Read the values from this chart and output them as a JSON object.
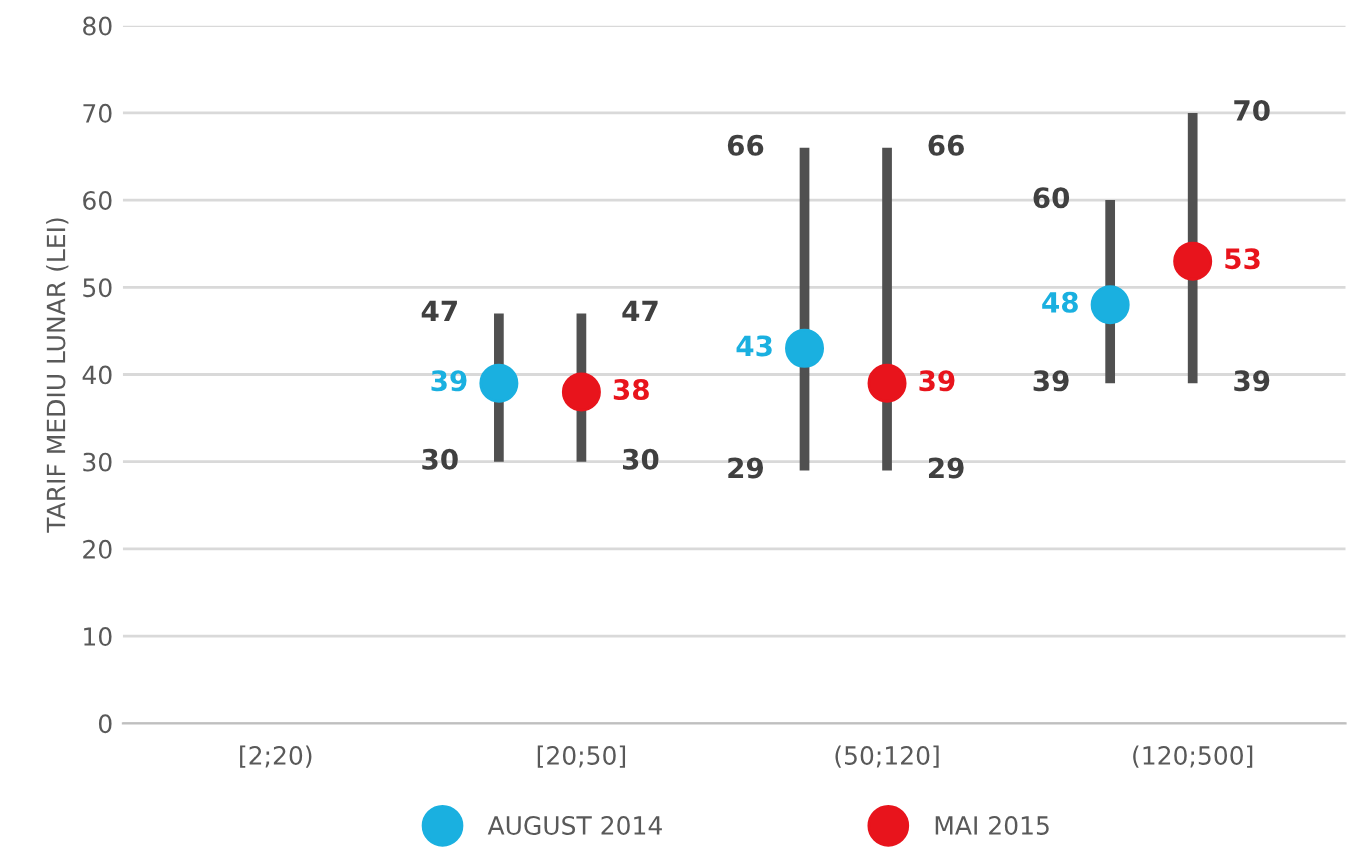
{
  "chart_data": {
    "type": "scatter",
    "ylabel": "TARIF MEDIU LUNAR (LEI)",
    "categories": [
      "[2;20)",
      "[20;50]",
      "(50;120]",
      "(120;500]"
    ],
    "series": [
      {
        "name": "AUGUST 2014",
        "color": "#1ab0e0",
        "values": [
          null,
          39,
          43,
          48
        ],
        "errors": [
          null,
          [
            30,
            47
          ],
          [
            29,
            66
          ],
          [
            39,
            60
          ]
        ]
      },
      {
        "name": "MAI 2015",
        "color": "#e8141c",
        "values": [
          null,
          38,
          39,
          53
        ],
        "errors": [
          null,
          [
            30,
            47
          ],
          [
            29,
            66
          ],
          [
            39,
            70
          ]
        ]
      }
    ],
    "annotations": [
      "30",
      "47",
      "29",
      "66",
      "39",
      "60",
      "30",
      "47",
      "29",
      "66",
      "39",
      "70"
    ],
    "ylim": [
      0,
      80
    ],
    "yticks": [
      0,
      10,
      20,
      30,
      40,
      50,
      60,
      70,
      80
    ],
    "grid": "y",
    "legend": "bottom",
    "marker": "circle",
    "data_labels": true
  }
}
